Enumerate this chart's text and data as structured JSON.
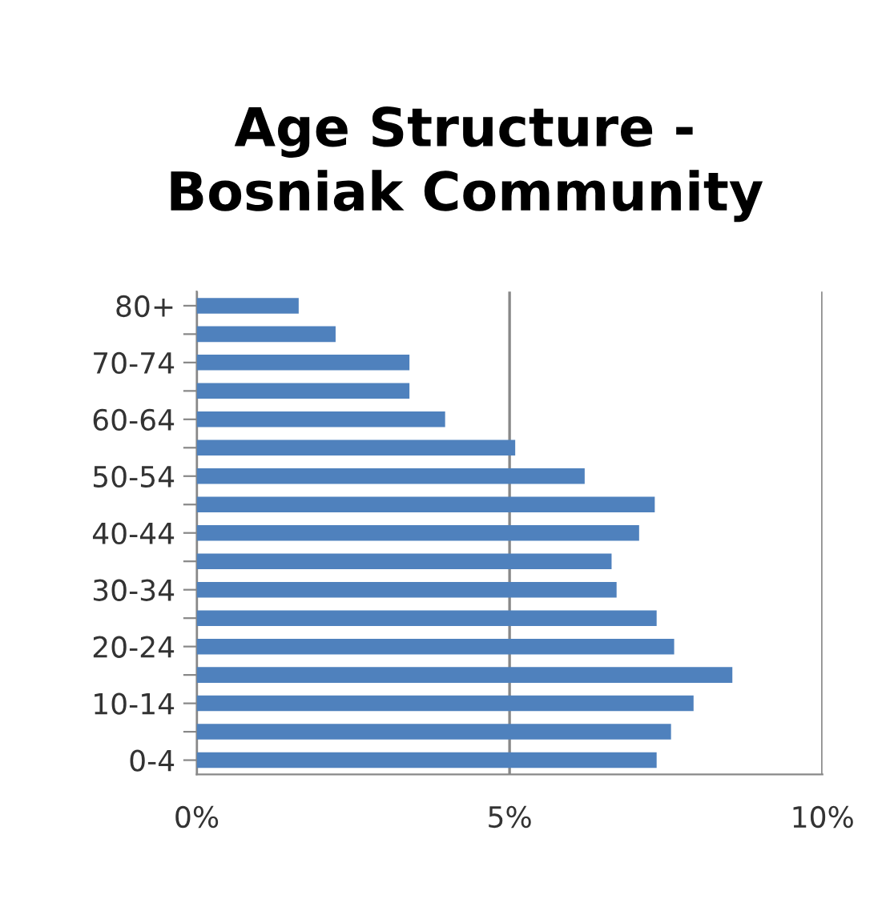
{
  "chart_data": {
    "type": "bar",
    "orientation": "horizontal",
    "title": "Age Structure -\nBosniak Community",
    "categories": [
      "80+",
      null,
      "70-74",
      null,
      "60-64",
      null,
      "50-54",
      null,
      "40-44",
      null,
      "30-34",
      null,
      "20-24",
      null,
      "10-14",
      null,
      "0-4"
    ],
    "values": [
      1.63,
      2.22,
      3.4,
      3.4,
      3.97,
      5.09,
      6.2,
      7.32,
      7.07,
      6.63,
      6.71,
      7.35,
      7.63,
      8.56,
      7.94,
      7.58,
      7.35
    ],
    "color": "#4f81bd",
    "xlim": [
      0,
      10
    ],
    "xticks": [
      {
        "value": 0,
        "label": "0%"
      },
      {
        "value": 5,
        "label": "5%"
      },
      {
        "value": 10,
        "label": "10%"
      }
    ],
    "grid": "x"
  }
}
